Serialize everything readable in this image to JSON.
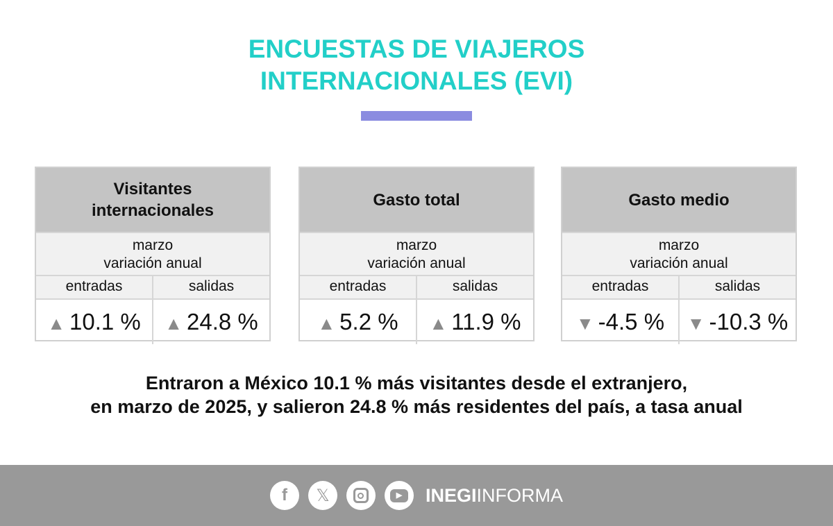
{
  "title": {
    "line1": "ENCUESTAS DE VIAJEROS",
    "line2": "INTERNACIONALES (EVI)"
  },
  "colors": {
    "title": "#22cfc8",
    "accent_bar": "#8b8ce0",
    "footer": "#999999"
  },
  "cards": [
    {
      "title": "Visitantes internacionales",
      "period": "marzo",
      "subtitle": "variación anual",
      "col1": "entradas",
      "col2": "salidas",
      "v1": "10.1 %",
      "v2": "24.8 %",
      "t1": "▲",
      "t2": "▲"
    },
    {
      "title": "Gasto total",
      "period": "marzo",
      "subtitle": "variación anual",
      "col1": "entradas",
      "col2": "salidas",
      "v1": "5.2 %",
      "v2": "11.9 %",
      "t1": "▲",
      "t2": "▲"
    },
    {
      "title": "Gasto medio",
      "period": "marzo",
      "subtitle": "variación anual",
      "col1": "entradas",
      "col2": "salidas",
      "v1": "-4.5 %",
      "v2": "-10.3 %",
      "t1": "▼",
      "t2": "▼"
    }
  ],
  "message": {
    "line1": "Entraron a México 10.1 % más visitantes desde el extranjero,",
    "line2": "en marzo de 2025, y salieron 24.8 % más residentes del país, a tasa anual"
  },
  "footer": {
    "icons": [
      "facebook-icon",
      "x-icon",
      "instagram-icon",
      "youtube-icon"
    ],
    "brand_bold": "INEGI",
    "brand_light": "INFORMA"
  }
}
